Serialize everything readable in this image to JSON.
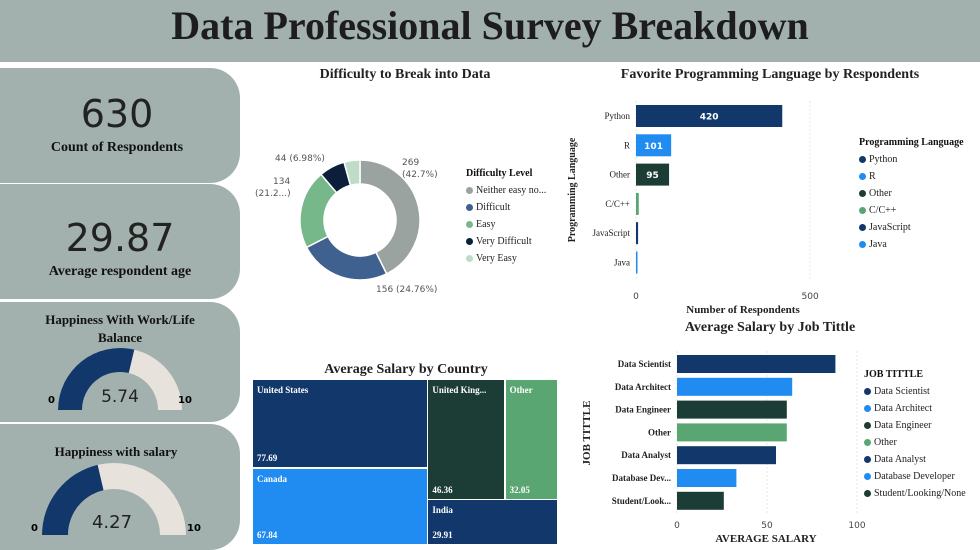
{
  "title": "Data Professional Survey Breakdown",
  "kpis": {
    "count_value": "630",
    "count_label": "Count of Respondents",
    "age_value": "29.87",
    "age_label": "Average respondent age"
  },
  "gauges": [
    {
      "title_line1": "Happiness With Work/Life",
      "title_line2": "Balance",
      "value_text": "5.74",
      "value": 5.74,
      "min_label": "0",
      "max_label": "10",
      "min": 0,
      "max": 10
    },
    {
      "title_line1": "Happiness with salary",
      "title_line2": "",
      "value_text": "4.27",
      "value": 4.27,
      "min_label": "0",
      "max_label": "10",
      "min": 0,
      "max": 10
    }
  ],
  "colors": {
    "panel": "#a2b1ae",
    "navy": "#12386b",
    "blue": "#208bf0",
    "darkgreen": "#1c3d35",
    "green": "#5aa672",
    "darkestnavy": "#0b1f3b",
    "gauge_bg": "#e8e2dd"
  },
  "chart_data": [
    {
      "type": "pie",
      "title": "Difficulty to Break into Data",
      "legend_title": "Difficulty Level",
      "legend_position": "right",
      "slices": [
        {
          "name": "Neither easy no...",
          "value": 269,
          "label": "269",
          "sublabel": "(42.7%)",
          "color": "#9ba3a1"
        },
        {
          "name": "Difficult",
          "value": 156,
          "label": "156 (24.76%)",
          "sublabel": "",
          "color": "#3e6190"
        },
        {
          "name": "Easy",
          "value": 134,
          "label": "134",
          "sublabel": "(21.2...)",
          "color": "#76b889"
        },
        {
          "name": "Very Difficult",
          "value": 44,
          "label": "44 (6.98%)",
          "sublabel": "",
          "color": "#0b1f3b"
        },
        {
          "name": "Very Easy",
          "value": 27,
          "label": "",
          "sublabel": "",
          "color": "#bfdcc8"
        }
      ]
    },
    {
      "type": "bar",
      "orientation": "horizontal",
      "title": "Favorite Programming Language by Respondents",
      "xlabel": "Number of Respondents",
      "ylabel": "Programming Language",
      "xlim": [
        0,
        560
      ],
      "xticks": [
        "0",
        "500"
      ],
      "xtick_values": [
        0,
        500
      ],
      "legend_title": "Programming Language",
      "categories": [
        "Python",
        "R",
        "Other",
        "C/C++",
        "JavaScript",
        "Java"
      ],
      "values": [
        420,
        101,
        95,
        8,
        6,
        2
      ],
      "data_labels": [
        "420",
        "101",
        "95",
        "",
        "",
        ""
      ],
      "colors": [
        "#12386b",
        "#208bf0",
        "#1c3d35",
        "#5aa672",
        "#12386b",
        "#208bf0"
      ]
    },
    {
      "type": "heatmap",
      "subtype": "treemap",
      "title": "Average Salary by Country",
      "cells": [
        {
          "name": "United States",
          "value": 77.69,
          "value_text": "77.69",
          "color": "#12386b"
        },
        {
          "name": "Canada",
          "value": 67.84,
          "value_text": "67.84",
          "color": "#208bf0"
        },
        {
          "name": "United King...",
          "value": 46.36,
          "value_text": "46.36",
          "color": "#1c3d35"
        },
        {
          "name": "Other",
          "value": 32.05,
          "value_text": "32.05",
          "color": "#5aa672"
        },
        {
          "name": "India",
          "value": 29.91,
          "value_text": "29.91",
          "color": "#12386b"
        }
      ]
    },
    {
      "type": "bar",
      "orientation": "horizontal",
      "title": "Average Salary by Job Tittle",
      "xlabel": "AVERAGE SALARY",
      "ylabel": "JOB TITTLE",
      "xlim": [
        0,
        100
      ],
      "xticks": [
        "0",
        "50",
        "100"
      ],
      "xtick_values": [
        0,
        50,
        100
      ],
      "legend_title": "JOB TITTLE",
      "categories": [
        "Data Scientist",
        "Data Architect",
        "Data Engineer",
        "Other",
        "Data Analyst",
        "Database Dev...",
        "Student/Look..."
      ],
      "legend_labels": [
        "Data Scientist",
        "Data Architect",
        "Data Engineer",
        "Other",
        "Data Analyst",
        "Database Developer",
        "Student/Looking/None"
      ],
      "values": [
        88,
        64,
        61,
        61,
        55,
        33,
        26
      ],
      "colors": [
        "#12386b",
        "#208bf0",
        "#1c3d35",
        "#5aa672",
        "#12386b",
        "#208bf0",
        "#1c3d35"
      ]
    }
  ]
}
